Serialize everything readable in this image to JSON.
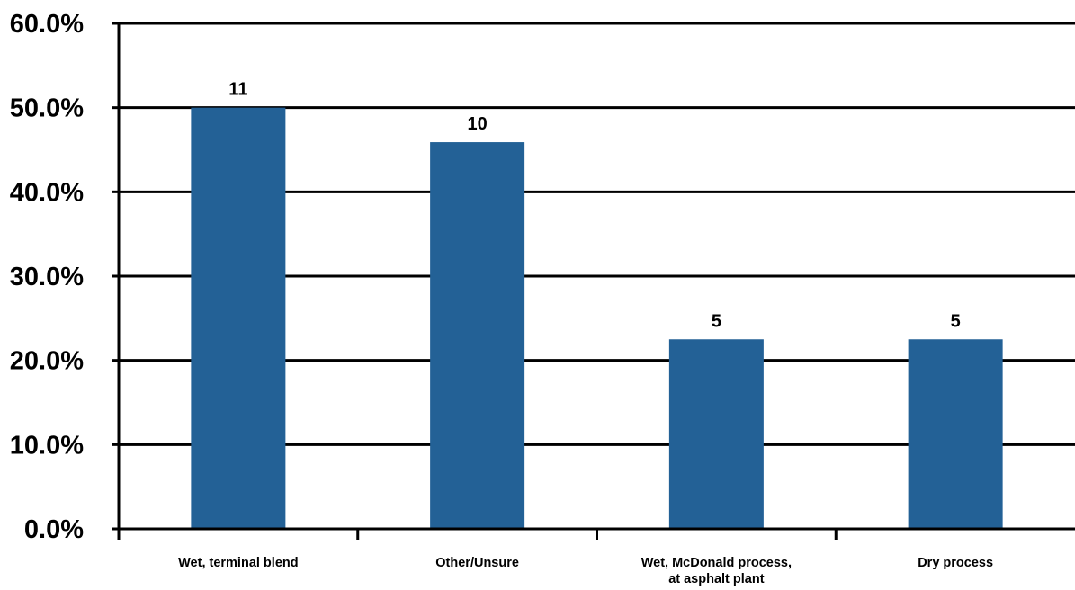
{
  "chart_data": {
    "type": "bar",
    "title": "",
    "xlabel": "",
    "ylabel": "",
    "categories": [
      [
        "Wet, terminal blend"
      ],
      [
        "Other/Unsure"
      ],
      [
        "Wet, McDonald process,",
        "at asphalt plant"
      ],
      [
        "Dry process"
      ]
    ],
    "values": [
      50.0,
      45.9,
      22.5,
      22.5
    ],
    "data_labels": [
      "11",
      "10",
      "5",
      "5"
    ],
    "ylim": [
      0,
      60
    ],
    "yticks": [
      0,
      10,
      20,
      30,
      40,
      50,
      60
    ],
    "ytick_labels": [
      "0.0%",
      "10.0%",
      "20.0%",
      "30.0%",
      "40.0%",
      "50.0%",
      "60.0%"
    ],
    "grid": true,
    "legend": "none",
    "colors": {
      "bar": "#236196",
      "axis": "#000000",
      "grid": "#000000"
    }
  }
}
